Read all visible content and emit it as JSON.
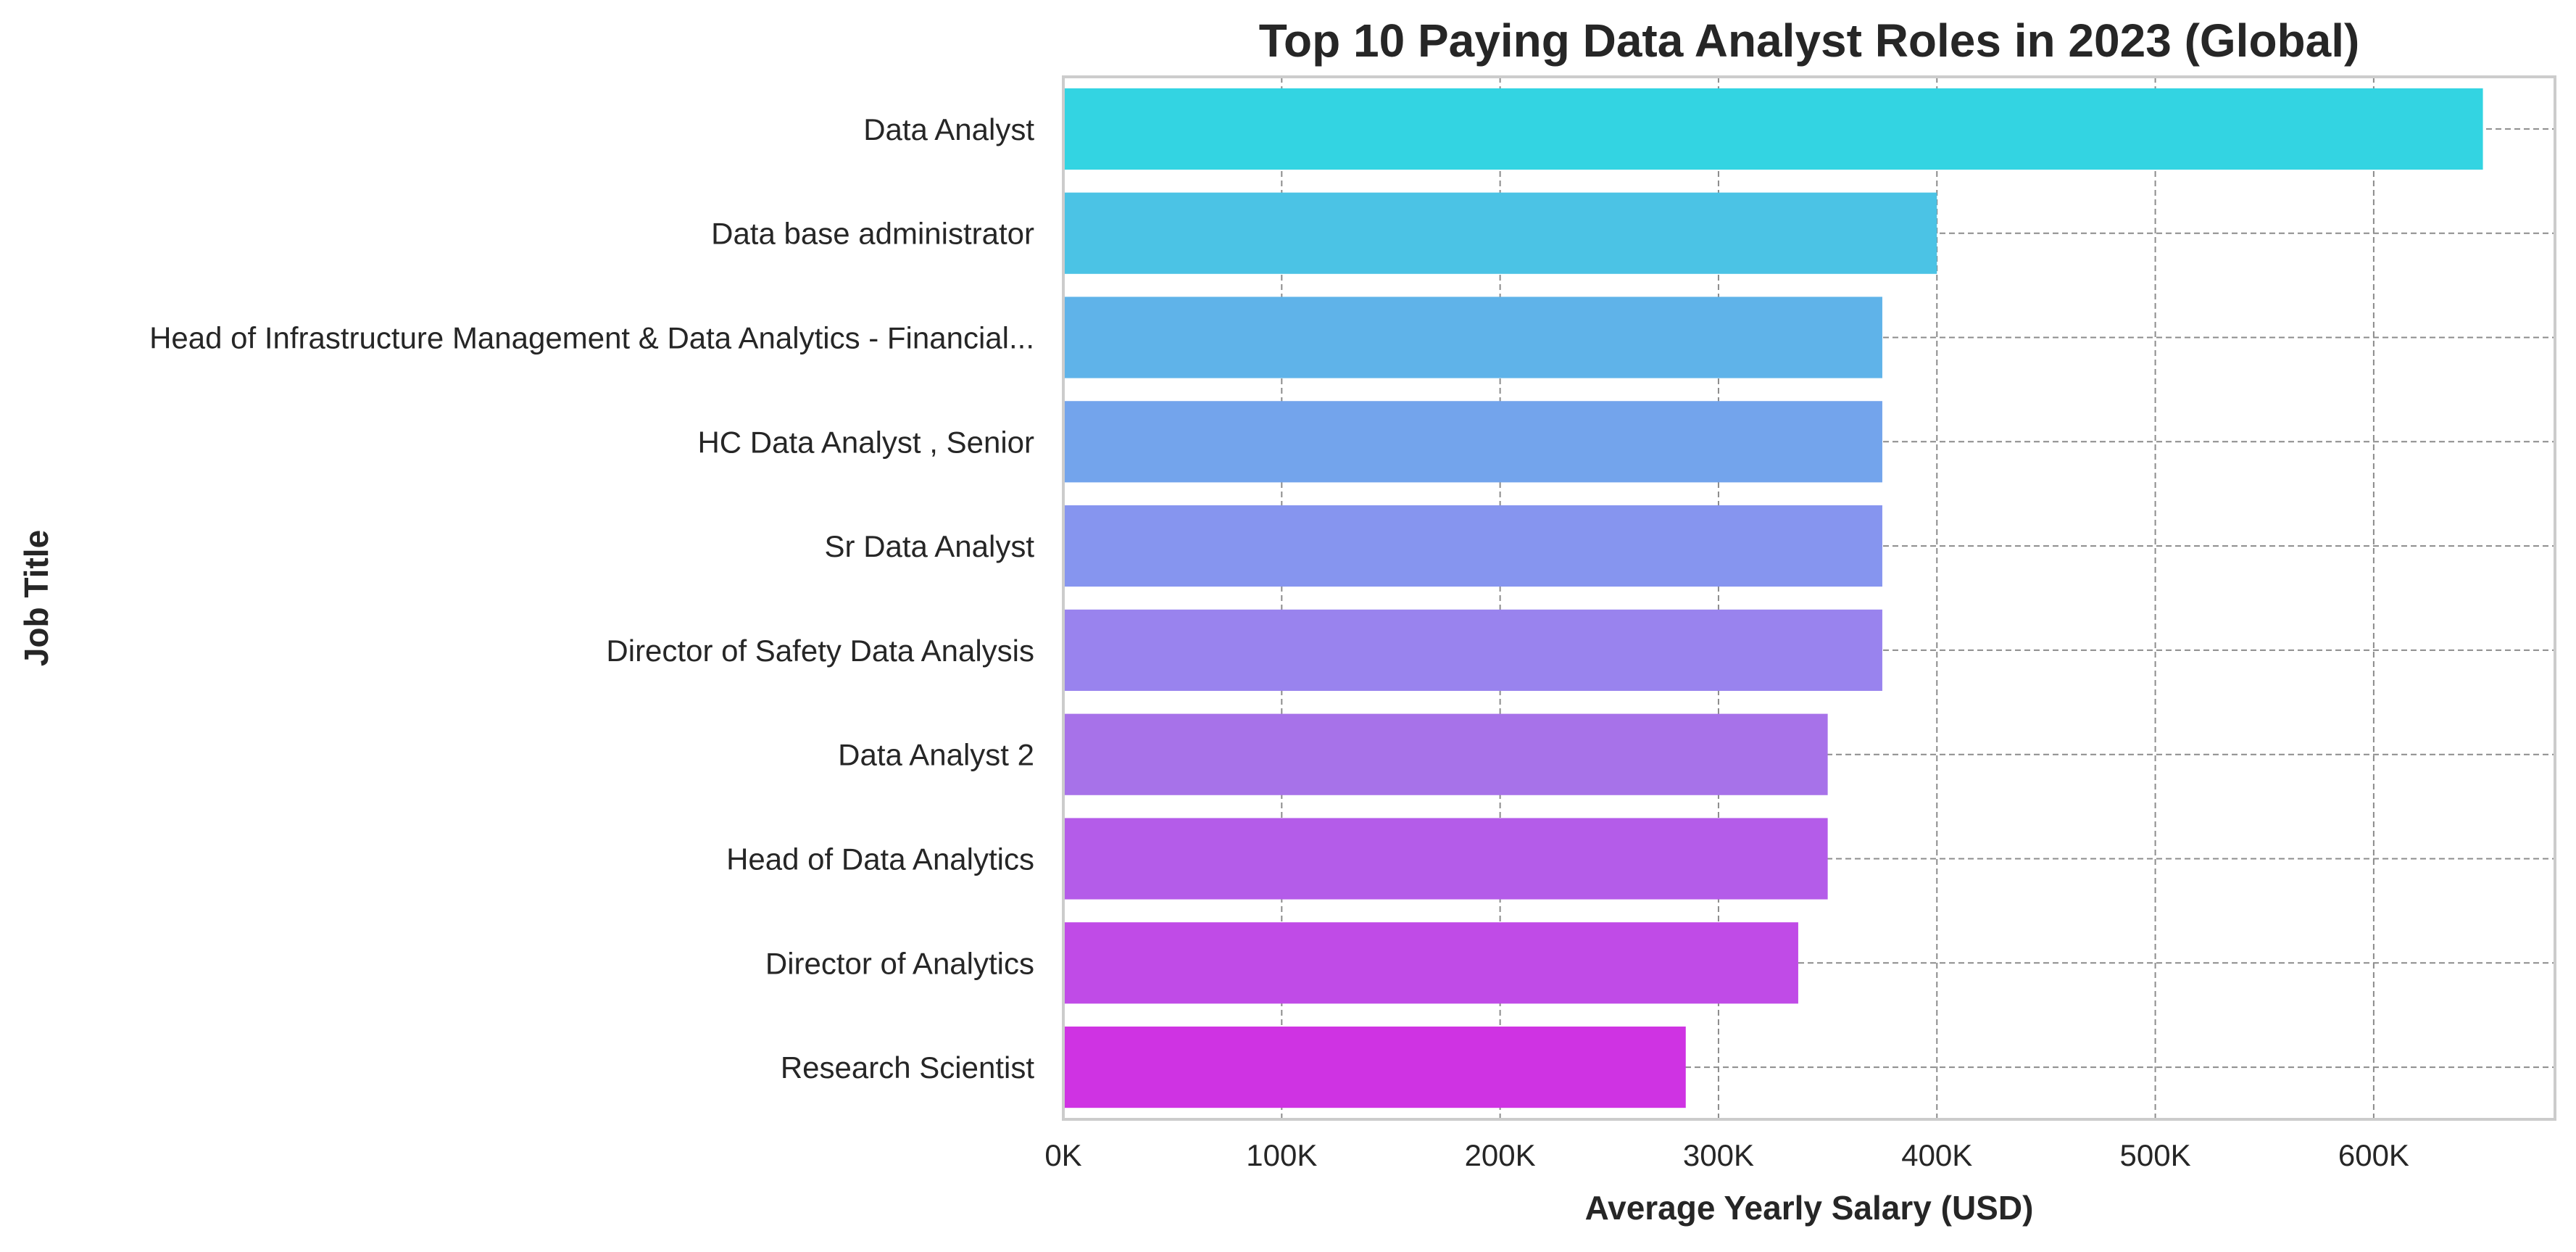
{
  "chart_data": {
    "type": "bar",
    "orientation": "horizontal",
    "title": "Top 10 Paying Data Analyst Roles in 2023 (Global)",
    "xlabel": "Average Yearly Salary (USD)",
    "ylabel": "Job Title",
    "categories": [
      "Data Analyst",
      "Data base administrator",
      "Head of Infrastructure Management & Data Analytics - Financial...",
      "HC Data Analyst , Senior",
      "Sr Data Analyst",
      "Director of Safety Data Analysis",
      "Data Analyst 2",
      "Head of Data Analytics",
      "Director of Analytics",
      "Research Scientist"
    ],
    "values": [
      650000,
      400000,
      375000,
      375000,
      375000,
      375000,
      350000,
      350000,
      336500,
      285000
    ],
    "colors": [
      "#33d4e2",
      "#4bc3e5",
      "#5fb3e9",
      "#73a4ec",
      "#8695ef",
      "#9983ee",
      "#a772e9",
      "#b45ce9",
      "#c04be7",
      "#cf33e3"
    ],
    "xlim": [
      0,
      683000
    ],
    "xticks": [
      0,
      100000,
      200000,
      300000,
      400000,
      500000,
      600000
    ],
    "xtick_labels": [
      "0K",
      "100K",
      "200K",
      "300K",
      "400K",
      "500K",
      "600K"
    ],
    "grid": true,
    "legend": "none"
  }
}
